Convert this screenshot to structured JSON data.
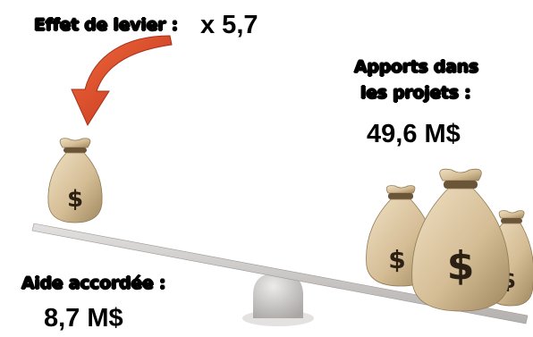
{
  "leverage": {
    "label": "Effet de levier :",
    "value": "x 5,7"
  },
  "contributions": {
    "label_line1": "Apports dans",
    "label_line2": "les projets :",
    "value": "49,6 M$"
  },
  "aid": {
    "label": "Aide accordée :",
    "value": "8,7 M$"
  },
  "colors": {
    "arrow": "#d9451f",
    "bag": "#d7c19e",
    "bag_shadow": "#a8926c",
    "dollar": "#2b2013",
    "beam": "#d0ccca",
    "fulcrum": "#c7c3c1"
  },
  "icons": {
    "small_bag": "money-bag-icon",
    "large_bags": "money-bags-icon",
    "arrow": "curved-arrow-icon"
  }
}
